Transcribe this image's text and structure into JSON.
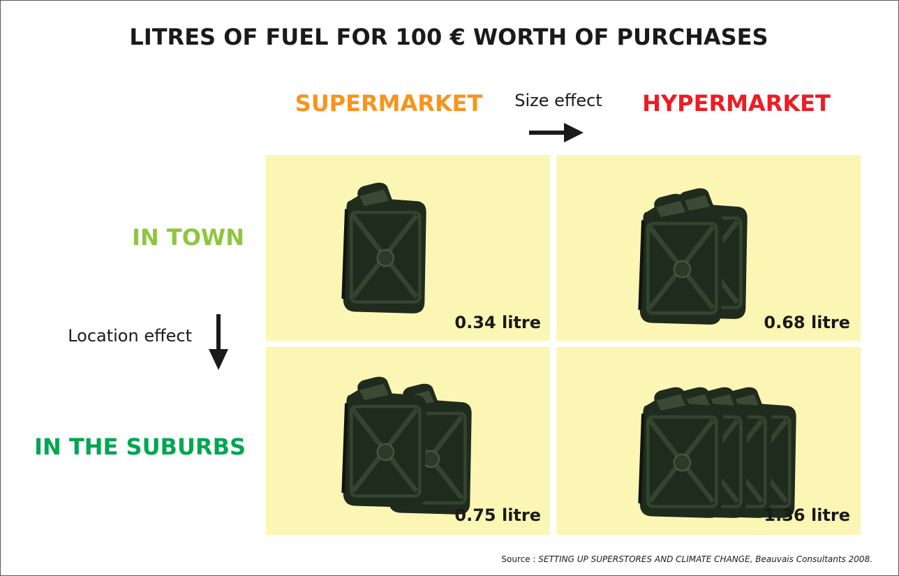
{
  "title": "LITRES OF FUEL FOR 100 € WORTH OF PURCHASES",
  "columns": [
    "SUPERMARKET",
    "HYPERMARKET"
  ],
  "size_effect": "Size effect",
  "rows": [
    "IN TOWN",
    "IN THE SUBURBS"
  ],
  "location_effect": "Location effect",
  "cells": [
    [
      "0.34 litre",
      "0.68 litre"
    ],
    [
      "0.75 litre",
      "1.36 litre"
    ]
  ],
  "source": {
    "label": "Source :",
    "text": "SETTING UP SUPERSTORES AND CLIMATE CHANGE, Beauvais Consultants 2008."
  }
}
